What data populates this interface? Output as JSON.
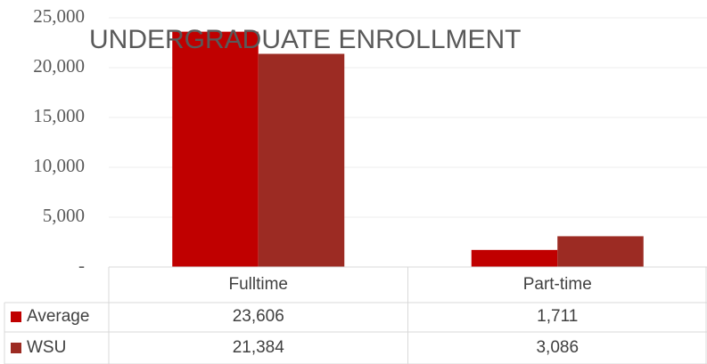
{
  "chart_data": {
    "type": "bar",
    "title": "UNDERGRADUATE ENROLLMENT",
    "categories": [
      "Fulltime",
      "Part-time"
    ],
    "series": [
      {
        "name": "Average",
        "color": "#c00000",
        "values": [
          23606,
          1711
        ],
        "value_labels": [
          "23,606",
          "1,711"
        ]
      },
      {
        "name": "WSU",
        "color": "#9c2b23",
        "values": [
          21384,
          3086
        ],
        "value_labels": [
          "21,384",
          "3,086"
        ]
      }
    ],
    "ylim": [
      0,
      25000
    ],
    "yticks": [
      {
        "value": 0,
        "label": "-"
      },
      {
        "value": 5000,
        "label": "5,000"
      },
      {
        "value": 10000,
        "label": "10,000"
      },
      {
        "value": 15000,
        "label": "15,000"
      },
      {
        "value": 20000,
        "label": "20,000"
      },
      {
        "value": 25000,
        "label": "25,000"
      }
    ],
    "grid": true
  }
}
